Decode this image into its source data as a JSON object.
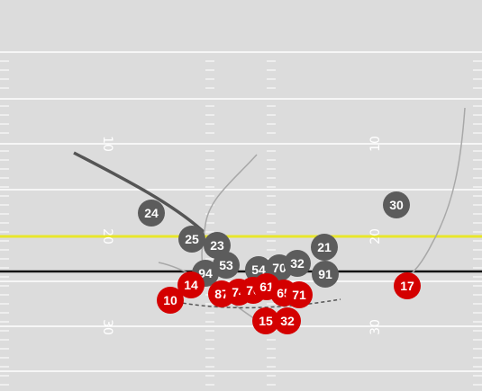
{
  "colors": {
    "field": "#dcdcdc",
    "line": "#ffffff",
    "first_down": "#e8e62a",
    "line_of_scrimmage": "#111111",
    "offense": "#d40000",
    "defense": "#5c5c5c",
    "route_gray": "#a8a8a8",
    "route_dark": "#555555"
  },
  "yard_numbers": {
    "left": [
      "10",
      "20",
      "30"
    ],
    "right": [
      "10",
      "20",
      "30"
    ]
  },
  "offense": {
    "players": [
      "10",
      "14",
      "87",
      "74",
      "76",
      "61",
      "65",
      "71",
      "15",
      "32",
      "17"
    ]
  },
  "defense": {
    "players": [
      "24",
      "25",
      "23",
      "94",
      "53",
      "54",
      "70",
      "32",
      "21",
      "91",
      "30"
    ]
  }
}
